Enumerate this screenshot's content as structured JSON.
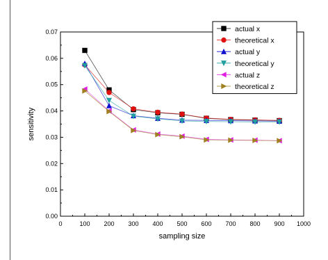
{
  "chart_data": {
    "type": "line",
    "xlabel": "sampling size",
    "ylabel": "sensitivity",
    "xlim": [
      0,
      1000
    ],
    "ylim": [
      0,
      0.07
    ],
    "x_ticks": [
      0,
      100,
      200,
      300,
      400,
      500,
      600,
      700,
      800,
      900,
      1000
    ],
    "y_ticks": [
      0.0,
      0.01,
      0.02,
      0.03,
      0.04,
      0.05,
      0.06,
      0.07
    ],
    "x_tick_labels": [
      "0",
      "100",
      "200",
      "300",
      "400",
      "500",
      "600",
      "700",
      "800",
      "900",
      "1000"
    ],
    "y_tick_labels": [
      "0.00",
      "0.01",
      "0.02",
      "0.03",
      "0.04",
      "0.05",
      "0.06",
      "0.07"
    ],
    "grid": false,
    "legend_position": "top-right",
    "x": [
      100,
      200,
      300,
      400,
      500,
      600,
      700,
      800,
      900
    ],
    "series": [
      {
        "name": "actual x",
        "color": "#000000",
        "marker": "square",
        "values": [
          0.063,
          0.048,
          0.0405,
          0.0393,
          0.0387,
          0.0372,
          0.0367,
          0.0365,
          0.0363
        ]
      },
      {
        "name": "theoretical x",
        "color": "#e01010",
        "marker": "circle",
        "values": [
          0.0575,
          0.047,
          0.0408,
          0.0395,
          0.0388,
          0.0373,
          0.0368,
          0.0366,
          0.0364
        ]
      },
      {
        "name": "actual y",
        "color": "#1010d0",
        "marker": "triangle-up",
        "values": [
          0.058,
          0.042,
          0.0382,
          0.0372,
          0.0365,
          0.0364,
          0.0363,
          0.0362,
          0.0361
        ]
      },
      {
        "name": "theoretical y",
        "color": "#20a0a0",
        "marker": "triangle-down",
        "values": [
          0.0572,
          0.044,
          0.038,
          0.037,
          0.0362,
          0.036,
          0.0359,
          0.0358,
          0.0358
        ]
      },
      {
        "name": "actual z",
        "color": "#e020e0",
        "marker": "triangle-left",
        "values": [
          0.0483,
          0.04,
          0.0328,
          0.0312,
          0.0304,
          0.0292,
          0.029,
          0.0289,
          0.0287
        ]
      },
      {
        "name": "theoretical z",
        "color": "#a08020",
        "marker": "triangle-right",
        "values": [
          0.0476,
          0.0398,
          0.0326,
          0.031,
          0.0302,
          0.029,
          0.0289,
          0.0288,
          0.0287
        ]
      }
    ]
  }
}
